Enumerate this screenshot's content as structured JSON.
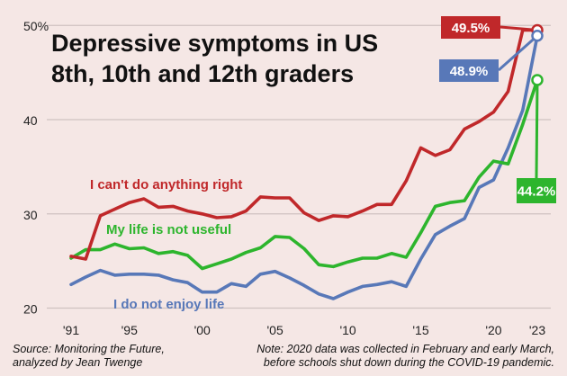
{
  "chart_data": {
    "type": "line",
    "title_lines": [
      "Depressive symptoms in US",
      "8th, 10th and 12th graders"
    ],
    "x": [
      1991,
      1992,
      1993,
      1994,
      1995,
      1996,
      1997,
      1998,
      1999,
      2000,
      2001,
      2002,
      2003,
      2004,
      2005,
      2006,
      2007,
      2008,
      2009,
      2010,
      2011,
      2012,
      2013,
      2014,
      2015,
      2016,
      2017,
      2018,
      2019,
      2020,
      2021,
      2022,
      2023
    ],
    "x_ticks": [
      1991,
      1995,
      2000,
      2005,
      2010,
      2015,
      2020,
      2023
    ],
    "x_tick_labels": [
      "'91",
      "'95",
      "'00",
      "'05",
      "'10",
      "'15",
      "'20",
      "'23"
    ],
    "y_ticks": [
      20,
      30,
      40,
      50
    ],
    "y_tick_labels": [
      "20",
      "30",
      "40",
      "50%"
    ],
    "xlim": [
      1991,
      2023
    ],
    "ylim": [
      19,
      50.5
    ],
    "grid": "horizontal",
    "series": [
      {
        "name": "I can't do anything right",
        "color": "#c0282a",
        "values": [
          25.5,
          25.2,
          29.8,
          30.5,
          31.2,
          31.6,
          30.7,
          30.8,
          30.3,
          30.0,
          29.6,
          29.7,
          30.3,
          31.8,
          31.7,
          31.7,
          30.1,
          29.3,
          29.8,
          29.7,
          30.3,
          31.0,
          31.0,
          33.5,
          37.0,
          36.2,
          36.8,
          39.0,
          39.8,
          40.8,
          43.0,
          49.5,
          49.5
        ],
        "end_label": "49.5%"
      },
      {
        "name": "My life is not useful",
        "color": "#2db52d",
        "values": [
          25.3,
          26.2,
          26.2,
          26.8,
          26.3,
          26.4,
          25.8,
          26.0,
          25.6,
          24.2,
          24.7,
          25.2,
          25.9,
          26.4,
          27.6,
          27.5,
          26.3,
          24.6,
          24.4,
          24.9,
          25.3,
          25.3,
          25.8,
          25.4,
          28.0,
          30.8,
          31.2,
          31.4,
          33.9,
          35.6,
          35.3,
          39.5,
          44.2
        ],
        "end_label": "44.2%"
      },
      {
        "name": "I do not enjoy life",
        "color": "#5878b8",
        "values": [
          22.5,
          23.3,
          24.0,
          23.5,
          23.6,
          23.6,
          23.5,
          23.0,
          22.7,
          21.7,
          21.7,
          22.6,
          22.3,
          23.6,
          23.9,
          23.2,
          22.4,
          21.5,
          21.0,
          21.7,
          22.3,
          22.5,
          22.8,
          22.3,
          25.2,
          27.8,
          28.7,
          29.5,
          32.8,
          33.6,
          37.0,
          41.0,
          48.9
        ],
        "end_label": "48.9%"
      }
    ],
    "footnotes": {
      "source_line1": "Source: Monitoring the Future,",
      "source_line2": "analyzed by Jean Twenge",
      "note_line1": "Note: 2020 data was collected in February and early March,",
      "note_line2": "before schools shut down during the COVID-19 pandemic."
    }
  }
}
